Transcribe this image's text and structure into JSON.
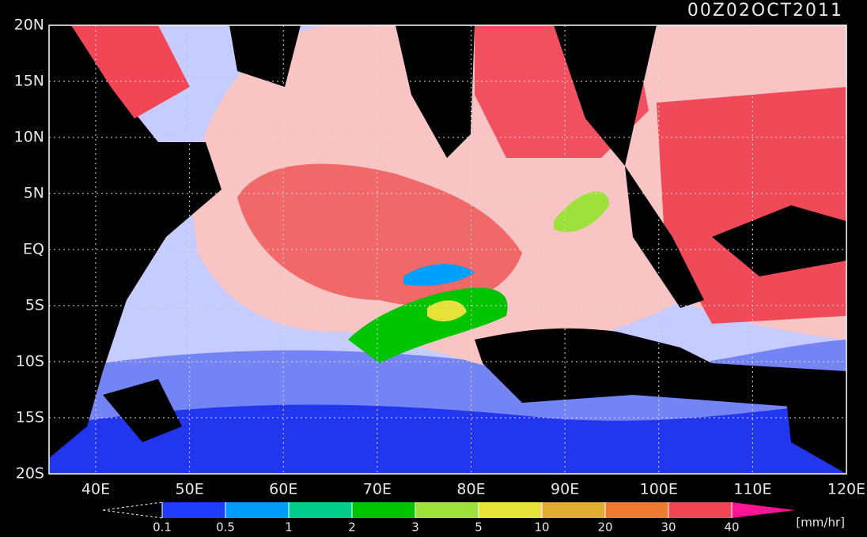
{
  "title": "00Z02OCT2011",
  "lat_labels": [
    "20N",
    "15N",
    "10N",
    "5N",
    "EQ",
    "5S",
    "10S",
    "15S",
    "20S"
  ],
  "lon_labels": [
    "40E",
    "50E",
    "60E",
    "70E",
    "80E",
    "90E",
    "100E",
    "110E",
    "120E"
  ],
  "colorbar": {
    "labels": [
      "0.1",
      "0.5",
      "1",
      "2",
      "3",
      "5",
      "10",
      "20",
      "30",
      "40"
    ],
    "colors": [
      "#1f3cff",
      "#009cff",
      "#00cc8c",
      "#00c400",
      "#9ee03c",
      "#e6e23a",
      "#e0ac34",
      "#ee7a34",
      "#f04656",
      "#ff1496"
    ],
    "unit": "[mm/hr]"
  }
}
